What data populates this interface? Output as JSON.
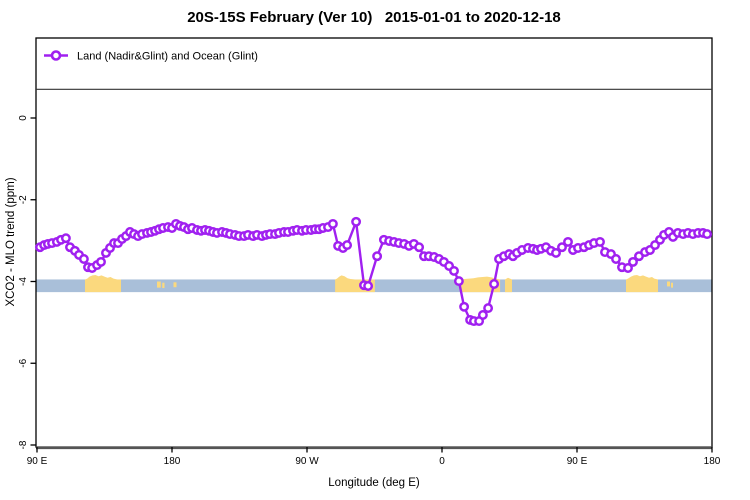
{
  "header": {
    "title": "20S-15S February (Ver 10)   2015-01-01 to 2020-12-18"
  },
  "legend": {
    "label": "Land (Nadir&Glint) and Ocean (Glint)",
    "symbol": "purple-line-open-circle"
  },
  "axes": {
    "x_label": "Longitude (deg E)",
    "y_label": "XCO2 - MLO trend (ppm)",
    "x_ticks": [
      {
        "lon": 90,
        "label": "90 E"
      },
      {
        "lon": 180,
        "label": "180"
      },
      {
        "lon": 270,
        "label": "90 W"
      },
      {
        "lon": 360,
        "label": "0"
      },
      {
        "lon": 450,
        "label": "90 E"
      },
      {
        "lon": 540,
        "label": "180"
      }
    ],
    "y_ticks": [
      {
        "value": 0,
        "label": "0"
      },
      {
        "value": -2,
        "label": "-2"
      },
      {
        "value": -4,
        "label": "-4"
      },
      {
        "value": -6,
        "label": "-6"
      },
      {
        "value": -8,
        "label": "-8"
      }
    ]
  },
  "colors": {
    "series": "#A020F0",
    "marker_fill": "#FFFFFF",
    "ocean_band": "#A9BFD9",
    "land_band": "#FBD97E",
    "axis": "#000000",
    "baseline": "#555555"
  },
  "chart_data": {
    "type": "line",
    "title": "20S-15S February (Ver 10)   2015-01-01 to 2020-12-18",
    "xlabel": "Longitude (deg E)",
    "ylabel": "XCO2 - MLO trend (ppm)",
    "xlim": [
      90,
      540
    ],
    "ylim": [
      -8,
      0
    ],
    "x_axis_note": "longitude wraps: 90E -> 180 -> 90W -> 0 -> 90E -> 180 (plotted as 90..540 continuous deg E)",
    "legend_position": "top, full-width box",
    "grid": false,
    "series": [
      {
        "name": "Land (Nadir&Glint) and Ocean (Glint)",
        "marker": "open-circle",
        "points": [
          [
            92.0,
            -3.16
          ],
          [
            94.7,
            -3.11
          ],
          [
            97.3,
            -3.08
          ],
          [
            100.0,
            -3.06
          ],
          [
            103.3,
            -3.03
          ],
          [
            106.0,
            -2.98
          ],
          [
            109.3,
            -2.94
          ],
          [
            112.0,
            -3.16
          ],
          [
            115.3,
            -3.25
          ],
          [
            118.0,
            -3.35
          ],
          [
            121.3,
            -3.45
          ],
          [
            124.0,
            -3.65
          ],
          [
            126.7,
            -3.67
          ],
          [
            130.0,
            -3.6
          ],
          [
            132.7,
            -3.52
          ],
          [
            136.0,
            -3.3
          ],
          [
            138.7,
            -3.18
          ],
          [
            141.3,
            -3.06
          ],
          [
            144.0,
            -3.06
          ],
          [
            146.7,
            -2.96
          ],
          [
            149.3,
            -2.89
          ],
          [
            152.0,
            -2.79
          ],
          [
            154.7,
            -2.84
          ],
          [
            157.3,
            -2.89
          ],
          [
            160.0,
            -2.84
          ],
          [
            163.3,
            -2.81
          ],
          [
            166.0,
            -2.79
          ],
          [
            168.7,
            -2.76
          ],
          [
            171.3,
            -2.72
          ],
          [
            174.0,
            -2.69
          ],
          [
            177.3,
            -2.67
          ],
          [
            180.0,
            -2.69
          ],
          [
            182.7,
            -2.59
          ],
          [
            185.3,
            -2.64
          ],
          [
            188.0,
            -2.67
          ],
          [
            190.7,
            -2.72
          ],
          [
            193.3,
            -2.69
          ],
          [
            196.7,
            -2.74
          ],
          [
            199.3,
            -2.76
          ],
          [
            202.0,
            -2.74
          ],
          [
            204.7,
            -2.76
          ],
          [
            207.3,
            -2.79
          ],
          [
            210.0,
            -2.81
          ],
          [
            213.3,
            -2.79
          ],
          [
            216.0,
            -2.81
          ],
          [
            218.7,
            -2.84
          ],
          [
            222.0,
            -2.86
          ],
          [
            224.7,
            -2.89
          ],
          [
            228.0,
            -2.89
          ],
          [
            230.7,
            -2.86
          ],
          [
            234.0,
            -2.89
          ],
          [
            236.7,
            -2.86
          ],
          [
            240.0,
            -2.89
          ],
          [
            242.7,
            -2.86
          ],
          [
            245.3,
            -2.84
          ],
          [
            248.7,
            -2.84
          ],
          [
            251.3,
            -2.81
          ],
          [
            254.7,
            -2.79
          ],
          [
            257.3,
            -2.79
          ],
          [
            260.7,
            -2.76
          ],
          [
            263.3,
            -2.74
          ],
          [
            266.7,
            -2.76
          ],
          [
            269.3,
            -2.74
          ],
          [
            272.7,
            -2.74
          ],
          [
            275.3,
            -2.72
          ],
          [
            278.0,
            -2.72
          ],
          [
            280.7,
            -2.69
          ],
          [
            284.0,
            -2.67
          ],
          [
            287.3,
            -2.59
          ],
          [
            290.7,
            -3.13
          ],
          [
            294.0,
            -3.18
          ],
          [
            296.7,
            -3.11
          ],
          [
            302.7,
            -2.54
          ],
          [
            308.0,
            -4.09
          ],
          [
            310.7,
            -4.11
          ],
          [
            316.7,
            -3.38
          ],
          [
            321.3,
            -2.98
          ],
          [
            324.7,
            -3.01
          ],
          [
            328.0,
            -3.03
          ],
          [
            331.3,
            -3.06
          ],
          [
            334.7,
            -3.08
          ],
          [
            338.0,
            -3.13
          ],
          [
            341.3,
            -3.08
          ],
          [
            344.7,
            -3.16
          ],
          [
            348.0,
            -3.38
          ],
          [
            351.3,
            -3.38
          ],
          [
            354.7,
            -3.4
          ],
          [
            358.0,
            -3.45
          ],
          [
            361.3,
            -3.52
          ],
          [
            364.7,
            -3.62
          ],
          [
            368.0,
            -3.74
          ],
          [
            371.3,
            -3.99
          ],
          [
            374.7,
            -4.62
          ],
          [
            378.7,
            -4.94
          ],
          [
            381.3,
            -4.97
          ],
          [
            384.7,
            -4.97
          ],
          [
            387.3,
            -4.82
          ],
          [
            390.7,
            -4.65
          ],
          [
            394.7,
            -4.06
          ],
          [
            398.0,
            -3.45
          ],
          [
            401.3,
            -3.38
          ],
          [
            404.7,
            -3.33
          ],
          [
            407.3,
            -3.38
          ],
          [
            410.0,
            -3.3
          ],
          [
            413.3,
            -3.23
          ],
          [
            417.3,
            -3.18
          ],
          [
            420.7,
            -3.2
          ],
          [
            423.3,
            -3.23
          ],
          [
            426.0,
            -3.2
          ],
          [
            429.3,
            -3.16
          ],
          [
            432.7,
            -3.25
          ],
          [
            436.0,
            -3.3
          ],
          [
            440.0,
            -3.16
          ],
          [
            444.0,
            -3.03
          ],
          [
            447.3,
            -3.23
          ],
          [
            450.7,
            -3.18
          ],
          [
            454.7,
            -3.16
          ],
          [
            458.0,
            -3.11
          ],
          [
            461.3,
            -3.06
          ],
          [
            465.3,
            -3.03
          ],
          [
            468.7,
            -3.28
          ],
          [
            472.7,
            -3.33
          ],
          [
            476.0,
            -3.45
          ],
          [
            480.0,
            -3.65
          ],
          [
            484.0,
            -3.67
          ],
          [
            487.3,
            -3.52
          ],
          [
            491.3,
            -3.38
          ],
          [
            495.3,
            -3.28
          ],
          [
            498.7,
            -3.23
          ],
          [
            502.0,
            -3.11
          ],
          [
            505.3,
            -2.98
          ],
          [
            508.0,
            -2.86
          ],
          [
            511.3,
            -2.79
          ],
          [
            514.0,
            -2.91
          ],
          [
            517.3,
            -2.81
          ],
          [
            520.7,
            -2.84
          ],
          [
            524.0,
            -2.81
          ],
          [
            527.3,
            -2.84
          ],
          [
            530.7,
            -2.81
          ],
          [
            534.0,
            -2.81
          ],
          [
            536.7,
            -2.84
          ]
        ]
      }
    ],
    "ocean_band": {
      "lon_start": 89.3,
      "lon_end": 540,
      "ppm_top": -3.95,
      "ppm_bottom": -4.26,
      "meaning": "ocean (glint) coverage strip"
    },
    "land_segments": [
      {
        "name": "australia-west-copy",
        "profile": [
          [
            122,
            -3.95
          ],
          [
            123.5,
            -3.93
          ],
          [
            125,
            -3.88
          ],
          [
            127,
            -3.85
          ],
          [
            129,
            -3.84
          ],
          [
            131,
            -3.87
          ],
          [
            133,
            -3.85
          ],
          [
            135,
            -3.88
          ],
          [
            137,
            -3.91
          ],
          [
            139,
            -3.89
          ],
          [
            141,
            -3.93
          ],
          [
            143.5,
            -3.95
          ],
          [
            146,
            -3.95
          ]
        ]
      },
      {
        "name": "south-america",
        "profile": [
          [
            288.7,
            -3.95
          ],
          [
            290,
            -3.93
          ],
          [
            291.5,
            -3.88
          ],
          [
            293,
            -3.85
          ],
          [
            295,
            -3.87
          ],
          [
            297,
            -3.92
          ],
          [
            299,
            -3.94
          ],
          [
            302,
            -3.95
          ],
          [
            315.3,
            -3.95
          ]
        ]
      },
      {
        "name": "africa",
        "profile": [
          [
            372,
            -3.95
          ],
          [
            375,
            -3.94
          ],
          [
            378,
            -3.93
          ],
          [
            381,
            -3.92
          ],
          [
            384,
            -3.9
          ],
          [
            387,
            -3.89
          ],
          [
            390,
            -3.88
          ],
          [
            393,
            -3.9
          ],
          [
            396,
            -3.93
          ],
          [
            398.7,
            -3.95
          ]
        ]
      },
      {
        "name": "madagascar",
        "profile": [
          [
            402,
            -3.95
          ],
          [
            404,
            -3.91
          ],
          [
            406.7,
            -3.95
          ]
        ]
      },
      {
        "name": "australia-east-copy",
        "profile": [
          [
            482.7,
            -3.95
          ],
          [
            484,
            -3.93
          ],
          [
            486,
            -3.88
          ],
          [
            488,
            -3.85
          ],
          [
            490,
            -3.84
          ],
          [
            492,
            -3.87
          ],
          [
            494,
            -3.85
          ],
          [
            496,
            -3.88
          ],
          [
            498,
            -3.91
          ],
          [
            500,
            -3.89
          ],
          [
            501.5,
            -3.93
          ],
          [
            504,
            -3.95
          ]
        ]
      }
    ],
    "land_speckles": [
      {
        "lon_start": 170.0,
        "lon_end": 172.5,
        "ppm_top": -4.0,
        "ppm_bottom": -4.15
      },
      {
        "lon_start": 173.5,
        "lon_end": 175.0,
        "ppm_top": -4.03,
        "ppm_bottom": -4.16
      },
      {
        "lon_start": 181.0,
        "lon_end": 183.0,
        "ppm_top": -4.02,
        "ppm_bottom": -4.14
      },
      {
        "lon_start": 510.0,
        "lon_end": 512.0,
        "ppm_top": -4.0,
        "ppm_bottom": -4.12
      },
      {
        "lon_start": 512.7,
        "lon_end": 514.0,
        "ppm_top": -4.03,
        "ppm_bottom": -4.15
      }
    ]
  }
}
